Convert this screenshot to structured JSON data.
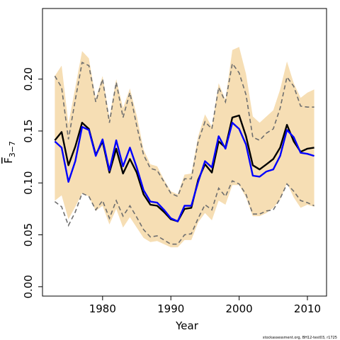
{
  "chart_data": {
    "type": "line",
    "xlabel": "Year",
    "ylabel": {
      "base": "F",
      "sub": "3−7"
    },
    "xlim": [
      1971.2,
      2012.8
    ],
    "ylim": [
      -0.009,
      0.268
    ],
    "x_ticks": [
      1980,
      1990,
      2000,
      2010
    ],
    "y_ticks": [
      "0.00",
      "0.05",
      "0.10",
      "0.15",
      "0.20"
    ],
    "years": [
      1973,
      1974,
      1975,
      1976,
      1977,
      1978,
      1979,
      1980,
      1981,
      1982,
      1983,
      1984,
      1985,
      1986,
      1987,
      1988,
      1989,
      1990,
      1991,
      1992,
      1993,
      1994,
      1995,
      1996,
      1997,
      1998,
      1999,
      2000,
      2001,
      2002,
      2003,
      2004,
      2005,
      2006,
      2007,
      2008,
      2009,
      2010,
      2011
    ],
    "series": [
      {
        "name": "",
        "color": "#000000",
        "values": [
          0.141,
          0.149,
          0.117,
          0.135,
          0.158,
          0.152,
          0.127,
          0.14,
          0.11,
          0.133,
          0.109,
          0.123,
          0.11,
          0.089,
          0.079,
          0.078,
          0.072,
          0.065,
          0.063,
          0.075,
          0.076,
          0.103,
          0.118,
          0.11,
          0.14,
          0.134,
          0.163,
          0.165,
          0.145,
          0.117,
          0.113,
          0.118,
          0.123,
          0.134,
          0.156,
          0.14,
          0.13,
          0.133,
          0.134
        ]
      },
      {
        "name": "",
        "color": "#0000ff",
        "values": [
          0.14,
          0.134,
          0.101,
          0.121,
          0.154,
          0.151,
          0.126,
          0.142,
          0.112,
          0.141,
          0.116,
          0.134,
          0.115,
          0.093,
          0.082,
          0.081,
          0.074,
          0.066,
          0.063,
          0.078,
          0.078,
          0.101,
          0.121,
          0.115,
          0.145,
          0.133,
          0.158,
          0.152,
          0.137,
          0.107,
          0.106,
          0.111,
          0.113,
          0.126,
          0.151,
          0.144,
          0.129,
          0.128,
          0.126
        ]
      }
    ],
    "band": {
      "color": "#f6deb4",
      "upper": [
        0.203,
        0.213,
        0.157,
        0.192,
        0.227,
        0.22,
        0.181,
        0.203,
        0.163,
        0.2,
        0.172,
        0.191,
        0.165,
        0.132,
        0.118,
        0.116,
        0.103,
        0.092,
        0.089,
        0.108,
        0.109,
        0.145,
        0.166,
        0.154,
        0.196,
        0.18,
        0.228,
        0.231,
        0.205,
        0.164,
        0.158,
        0.164,
        0.17,
        0.19,
        0.217,
        0.196,
        0.182,
        0.187,
        0.19
      ],
      "lower": [
        0.083,
        0.088,
        0.065,
        0.077,
        0.09,
        0.087,
        0.073,
        0.078,
        0.06,
        0.075,
        0.057,
        0.067,
        0.057,
        0.047,
        0.043,
        0.044,
        0.041,
        0.038,
        0.038,
        0.045,
        0.045,
        0.062,
        0.071,
        0.064,
        0.083,
        0.079,
        0.098,
        0.098,
        0.086,
        0.068,
        0.068,
        0.071,
        0.076,
        0.084,
        0.1,
        0.086,
        0.076,
        0.079,
        0.077
      ]
    },
    "dashed": {
      "color": "#6e6e6e",
      "upper": [
        0.203,
        0.192,
        0.142,
        0.18,
        0.216,
        0.213,
        0.178,
        0.2,
        0.158,
        0.197,
        0.163,
        0.187,
        0.155,
        0.127,
        0.114,
        0.112,
        0.101,
        0.09,
        0.087,
        0.104,
        0.104,
        0.14,
        0.159,
        0.152,
        0.192,
        0.178,
        0.215,
        0.206,
        0.185,
        0.144,
        0.141,
        0.148,
        0.152,
        0.172,
        0.202,
        0.193,
        0.174,
        0.173,
        0.173
      ],
      "lower": [
        0.082,
        0.077,
        0.059,
        0.072,
        0.09,
        0.087,
        0.074,
        0.083,
        0.066,
        0.083,
        0.068,
        0.078,
        0.067,
        0.055,
        0.048,
        0.049,
        0.045,
        0.041,
        0.041,
        0.05,
        0.051,
        0.066,
        0.079,
        0.074,
        0.095,
        0.087,
        0.102,
        0.099,
        0.089,
        0.07,
        0.07,
        0.073,
        0.074,
        0.085,
        0.099,
        0.092,
        0.083,
        0.081,
        0.078
      ]
    },
    "grid": false,
    "legend": "none"
  },
  "footnote": "stockassessment.org, BH12-test03, r1725"
}
